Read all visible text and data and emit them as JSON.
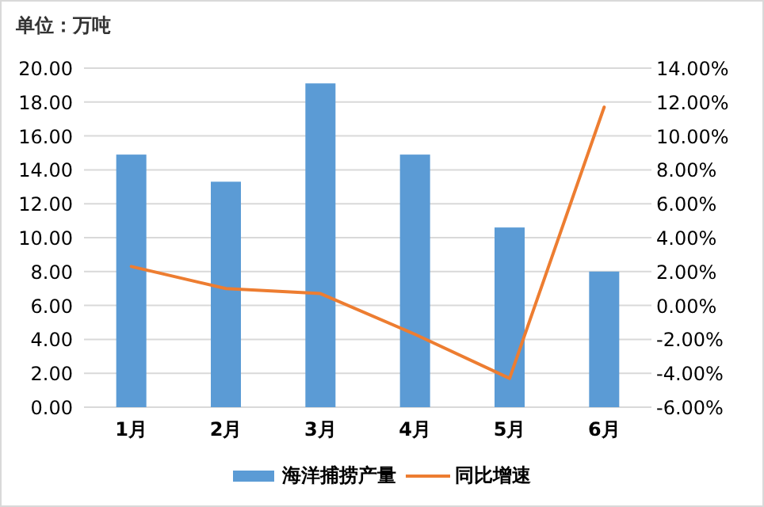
{
  "chart_data": {
    "type": "bar",
    "ylabel": "单位：万吨",
    "categories": [
      "1月",
      "2月",
      "3月",
      "4月",
      "5月",
      "6月"
    ],
    "series": [
      {
        "name": "海洋捕捞产量",
        "color": "#5b9bd5",
        "values": [
          14.9,
          13.3,
          19.1,
          14.9,
          10.6,
          8.0
        ]
      },
      {
        "name": "同比增速",
        "type": "line",
        "axis": "y2",
        "color": "#ed7d31",
        "values": [
          2.3,
          1.0,
          0.7,
          -1.7,
          -4.3,
          11.7
        ]
      }
    ],
    "ylim": [
      0,
      20
    ],
    "yticks": [
      {
        "value": 0,
        "label": "0.00"
      },
      {
        "value": 2,
        "label": "2.00"
      },
      {
        "value": 4,
        "label": "4.00"
      },
      {
        "value": 6,
        "label": "6.00"
      },
      {
        "value": 8,
        "label": "8.00"
      },
      {
        "value": 10,
        "label": "10.00"
      },
      {
        "value": 12,
        "label": "12.00"
      },
      {
        "value": 14,
        "label": "14.00"
      },
      {
        "value": 16,
        "label": "16.00"
      },
      {
        "value": 18,
        "label": "18.00"
      },
      {
        "value": 20,
        "label": "20.00"
      }
    ],
    "y2lim": [
      -6,
      14
    ],
    "y2ticks": [
      {
        "value": -6,
        "label": "-6.00%"
      },
      {
        "value": -4,
        "label": "-4.00%"
      },
      {
        "value": -2,
        "label": "-2.00%"
      },
      {
        "value": 0,
        "label": "0.00%"
      },
      {
        "value": 2,
        "label": "2.00%"
      },
      {
        "value": 4,
        "label": "4.00%"
      },
      {
        "value": 6,
        "label": "6.00%"
      },
      {
        "value": 8,
        "label": "8.00%"
      },
      {
        "value": 10,
        "label": "10.00%"
      },
      {
        "value": 12,
        "label": "12.00%"
      },
      {
        "value": 14,
        "label": "14.00%"
      }
    ],
    "grid": "y",
    "legend": "bottom",
    "marker": "none",
    "line_style": "solid"
  }
}
